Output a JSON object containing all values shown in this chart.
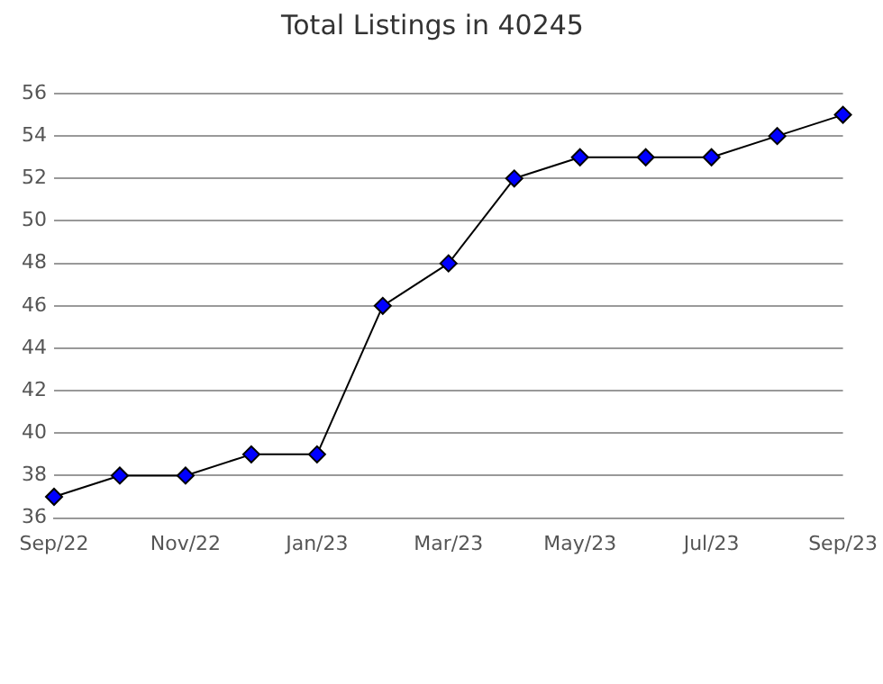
{
  "chart_data": {
    "type": "line",
    "title": "Total Listings in 40245",
    "categories": [
      "Sep/22",
      null,
      "Nov/22",
      null,
      "Jan/23",
      null,
      "Mar/23",
      null,
      "May/23",
      null,
      "Jul/23",
      null,
      "Sep/23"
    ],
    "series": [
      {
        "color": "#0000ff",
        "values": [
          37,
          38,
          38,
          39,
          39,
          46,
          48,
          52,
          53,
          53,
          53,
          54,
          55
        ]
      }
    ],
    "ylim": [
      36,
      56
    ],
    "yticks": [
      36,
      38,
      40,
      42,
      44,
      46,
      48,
      50,
      52,
      54,
      56
    ],
    "grid": "y",
    "marker": "diamond",
    "line_style": "solid",
    "legend": false
  }
}
